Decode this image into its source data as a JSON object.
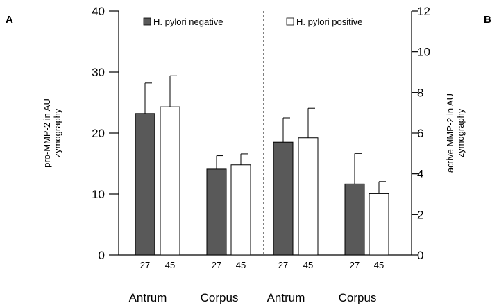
{
  "panels": [
    "A",
    "B"
  ],
  "legend": {
    "negative": {
      "label": "H. pylori negative",
      "color": "#595959"
    },
    "positive": {
      "label": "H. pylori positive",
      "color": "#ffffff"
    }
  },
  "chart_data": [
    {
      "type": "bar",
      "panel": "A",
      "ylabel": [
        "pro-MMP-2 in AU",
        "zymography"
      ],
      "ylim": [
        0,
        40
      ],
      "yticks": [
        "0",
        "10",
        "20",
        "30",
        "40"
      ],
      "categories": [
        "Antrum",
        "Corpus"
      ],
      "series": [
        {
          "name": "H. pylori negative",
          "n": "27",
          "values": [
            23.2,
            14.1
          ],
          "errors": [
            5.0,
            2.2
          ]
        },
        {
          "name": "H. pylori positive",
          "n": "45",
          "values": [
            24.3,
            14.8
          ],
          "errors": [
            5.1,
            1.8
          ]
        }
      ]
    },
    {
      "type": "bar",
      "panel": "B",
      "ylabel": [
        "active MMP-2 in AU",
        "zymography"
      ],
      "ylim": [
        0,
        12
      ],
      "yticks": [
        "0",
        "2",
        "4",
        "6",
        "8",
        "10",
        "12"
      ],
      "categories": [
        "Antrum",
        "Corpus"
      ],
      "series": [
        {
          "name": "H. pylori negative",
          "n": "27",
          "values": [
            5.55,
            3.5
          ],
          "errors": [
            1.2,
            1.5
          ]
        },
        {
          "name": "H. pylori positive",
          "n": "45",
          "values": [
            5.77,
            3.02
          ],
          "errors": [
            1.45,
            0.6
          ]
        }
      ]
    }
  ]
}
